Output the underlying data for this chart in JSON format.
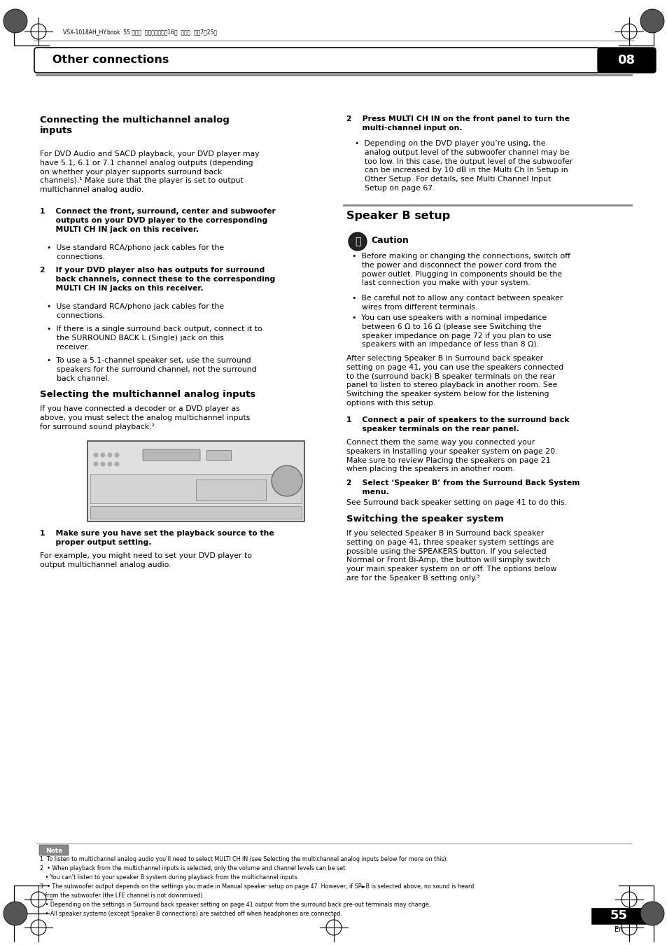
{
  "bg_color": "#ffffff",
  "page_number": "55",
  "page_label": "En",
  "chapter_number": "08",
  "chapter_title": "Other connections",
  "header_text": "VSX-1018AH_HY.book  55 ページ  ２００８年４月16日  水曜日  午後7時25分",
  "note_title": "Note",
  "notes_line1": "1  To listen to multichannel analog audio you’ll need to select MULTI CH IN (see Selecting the multichannel analog inputs below for more on this).",
  "notes_line2": "2  • When playback from the multichannel inputs is selected, only the volume and channel levels can be set.",
  "notes_line3": "   • You can’t listen to your speaker B system during playback from the multichannel inputs.",
  "notes_line4": "3  • The subwoofer output depends on the settings you made in Manual speaker setup on page 47. However, if SP►B is selected above, no sound is heard",
  "notes_line4b": "   from the subwoofer (the LFE channel is not downmixed).",
  "notes_line5": "   • Depending on the settings in Surround back speaker setting on page 41 output from the surround back pre-out terminals may change.",
  "notes_line6": "   • All speaker systems (except Speaker B connections) are switched off when headphones are connected."
}
